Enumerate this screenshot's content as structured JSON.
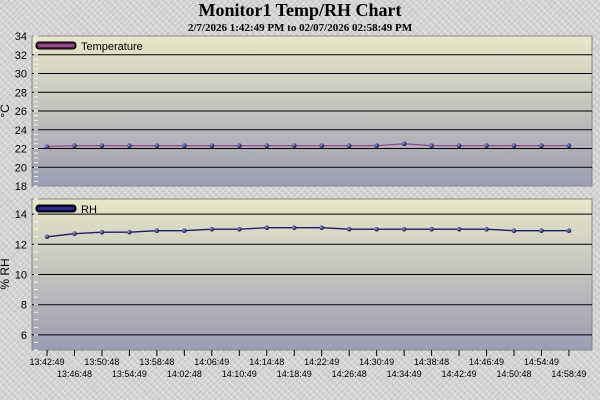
{
  "title": "Monitor1 Temp/RH Chart",
  "subtitle": "2/7/2026 1:42:49 PM to 02/07/2026 02:58:49 PM",
  "colors": {
    "plot_top": "#e8e8c8",
    "plot_bottom": "#9c9cb4",
    "temperature_line": "#9a4a8a",
    "rh_line": "#1c1c6e",
    "markers": "#1c1c3c"
  },
  "chart_data": [
    {
      "type": "line",
      "title": "",
      "ylabel": "°C",
      "xlabel": "",
      "ylim": [
        18,
        34
      ],
      "yticks": [
        18,
        20,
        22,
        24,
        26,
        28,
        30,
        32,
        34
      ],
      "grid": true,
      "legend_placement": "top-left",
      "series": [
        {
          "name": "Temperature",
          "values": [
            22.2,
            22.3,
            22.3,
            22.3,
            22.3,
            22.3,
            22.3,
            22.3,
            22.3,
            22.3,
            22.3,
            22.3,
            22.3,
            22.5,
            22.3,
            22.3,
            22.3,
            22.3,
            22.3,
            22.3
          ]
        }
      ]
    },
    {
      "type": "line",
      "title": "",
      "ylabel": "% RH",
      "xlabel": "",
      "ylim": [
        5,
        15
      ],
      "yticks": [
        6,
        8,
        10,
        12,
        14
      ],
      "grid": true,
      "legend_placement": "top-left",
      "x": [
        "13:42:49",
        "13:46:48",
        "13:50:48",
        "13:54:49",
        "13:58:48",
        "14:02:48",
        "14:06:49",
        "14:10:49",
        "14:14:48",
        "14:18:49",
        "14:22:49",
        "14:26:48",
        "14:30:49",
        "14:34:49",
        "14:38:48",
        "14:42:49",
        "14:46:49",
        "14:50:48",
        "14:54:49",
        "14:58:49"
      ],
      "series": [
        {
          "name": "RH",
          "values": [
            12.5,
            12.7,
            12.8,
            12.8,
            12.9,
            12.9,
            13.0,
            13.0,
            13.1,
            13.1,
            13.1,
            13.0,
            13.0,
            13.0,
            13.0,
            13.0,
            13.0,
            12.9,
            12.9,
            12.9
          ]
        }
      ]
    }
  ]
}
